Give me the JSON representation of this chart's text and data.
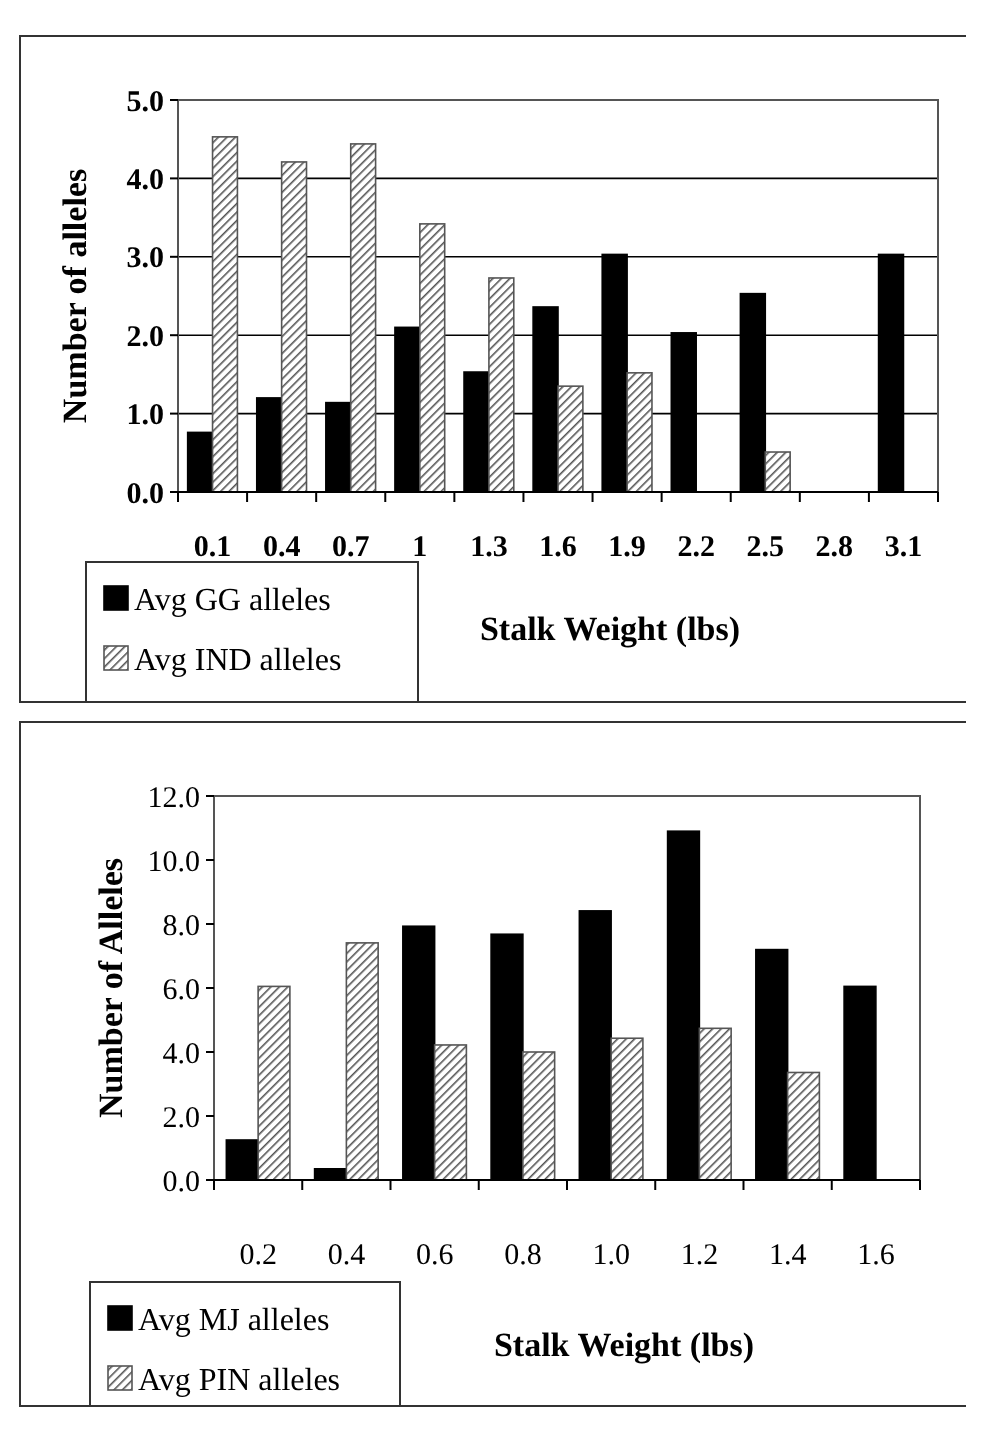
{
  "chart_data": [
    {
      "type": "bar",
      "xlabel": "Stalk Weight (lbs)",
      "ylabel": "Number of alleles",
      "categories": [
        "0.1",
        "0.4",
        "0.7",
        "1",
        "1.3",
        "1.6",
        "1.9",
        "2.2",
        "2.5",
        "2.8",
        "3.1"
      ],
      "series": [
        {
          "name": "Avg GG alleles",
          "color": "#000000",
          "values": [
            0.76,
            1.2,
            1.14,
            2.1,
            1.53,
            2.36,
            3.03,
            2.03,
            2.53,
            0,
            3.03
          ]
        },
        {
          "name": "Avg IND alleles",
          "color": "#555555",
          "values": [
            4.53,
            4.21,
            4.44,
            3.42,
            2.73,
            1.35,
            1.52,
            0,
            0.51,
            0,
            0
          ]
        }
      ],
      "ylim": [
        0,
        5
      ],
      "yticks": [
        {
          "value": 0,
          "label": "0.0"
        },
        {
          "value": 1,
          "label": "1.0"
        },
        {
          "value": 2,
          "label": "2.0"
        },
        {
          "value": 3,
          "label": "3.0"
        },
        {
          "value": 4,
          "label": "4.0"
        },
        {
          "value": 5,
          "label": "5.0"
        }
      ],
      "grid": "y",
      "legend": "bottom left"
    },
    {
      "type": "bar",
      "xlabel": "Stalk Weight (lbs)",
      "ylabel": "Number of Alleles",
      "categories": [
        "0.2",
        "0.4",
        "0.6",
        "0.8",
        "1.0",
        "1.2",
        "1.4",
        "1.6"
      ],
      "series": [
        {
          "name": "Avg MJ alleles",
          "color": "#000000",
          "values": [
            1.25,
            0.35,
            7.93,
            7.68,
            8.41,
            10.9,
            7.2,
            6.05
          ]
        },
        {
          "name": "Avg PIN alleles",
          "color": "#555555",
          "values": [
            6.05,
            7.41,
            4.22,
            4.0,
            4.43,
            4.74,
            3.36,
            0
          ]
        }
      ],
      "ylim": [
        0,
        12
      ],
      "yticks": [
        {
          "value": 0,
          "label": "0.0"
        },
        {
          "value": 2,
          "label": "2.0"
        },
        {
          "value": 4,
          "label": "4.0"
        },
        {
          "value": 6,
          "label": "6.0"
        },
        {
          "value": 8,
          "label": "8.0"
        },
        {
          "value": 10,
          "label": "10.0"
        },
        {
          "value": 12,
          "label": "12.0"
        }
      ],
      "grid": false,
      "legend": "bottom left"
    }
  ]
}
